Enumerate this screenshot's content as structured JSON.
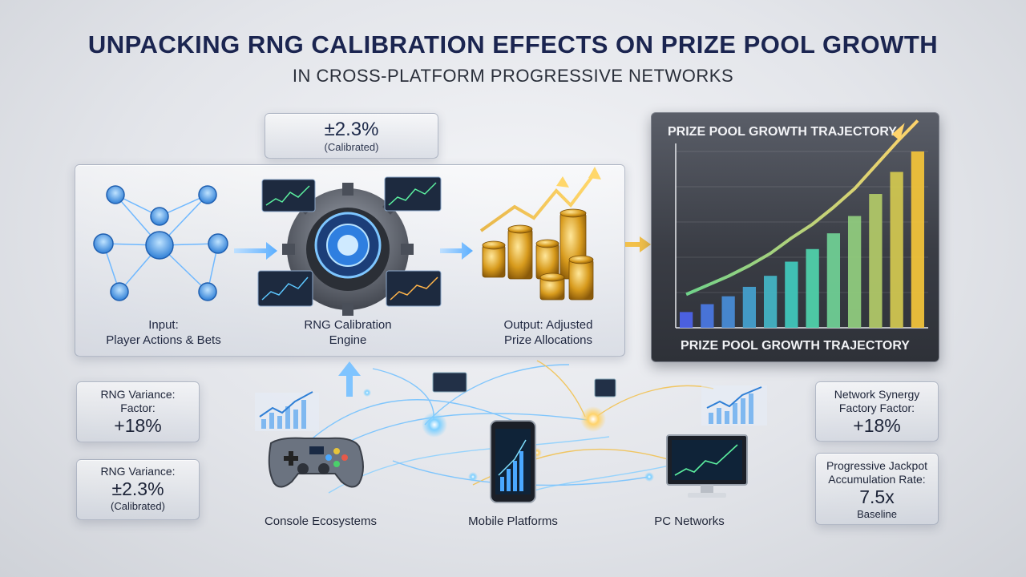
{
  "header": {
    "title": "UNPACKING RNG CALIBRATION EFFECTS ON PRIZE POOL GROWTH",
    "subtitle": "IN CROSS-PLATFORM PROGRESSIVE NETWORKS"
  },
  "calibration_box": {
    "value": "±2.3%",
    "note": "(Calibrated)"
  },
  "flow": {
    "input_label": [
      "Input:",
      "Player Actions & Bets"
    ],
    "engine_label": [
      "RNG Calibration",
      "Engine"
    ],
    "output_label": [
      "Output: Adjusted",
      "Prize Allocations"
    ]
  },
  "growth_chart": {
    "title_top": "PRIZE POOL GROWTH TRAJECTORY",
    "title_bottom": "PRIZE POOL GROWTH TRAJECTORY"
  },
  "chart_data": {
    "type": "bar",
    "title": "PRIZE POOL GROWTH TRAJECTORY",
    "xlabel": "",
    "ylabel": "",
    "grid": true,
    "values": [
      1.0,
      1.5,
      2.0,
      2.6,
      3.3,
      4.2,
      5.0,
      6.0,
      7.1,
      8.5,
      9.9,
      11.2
    ]
  },
  "stats_left": [
    {
      "label": [
        "RNG Variance:",
        "Factor:"
      ],
      "value": "+18%",
      "note": ""
    },
    {
      "label": [
        "RNG Variance:"
      ],
      "value": "±2.3%",
      "note": "(Calibrated)"
    }
  ],
  "stats_right": [
    {
      "label": [
        "Network Synergy",
        "Factory Factor:"
      ],
      "value": "+18%",
      "note": ""
    },
    {
      "label": [
        "Progressive Jackpot",
        "Accumulation Rate:"
      ],
      "value": "7.5x",
      "note": "Baseline"
    }
  ],
  "platforms": {
    "console": "Console Ecosystems",
    "mobile": "Mobile Platforms",
    "pc": "PC Networks"
  },
  "colors": {
    "title": "#1b2550",
    "accent_blue": "#4aa8ff",
    "accent_gold": "#f2b233",
    "bar_start": "#4d63e8",
    "bar_mid": "#3fd1b5",
    "bar_end": "#f0c23a"
  }
}
